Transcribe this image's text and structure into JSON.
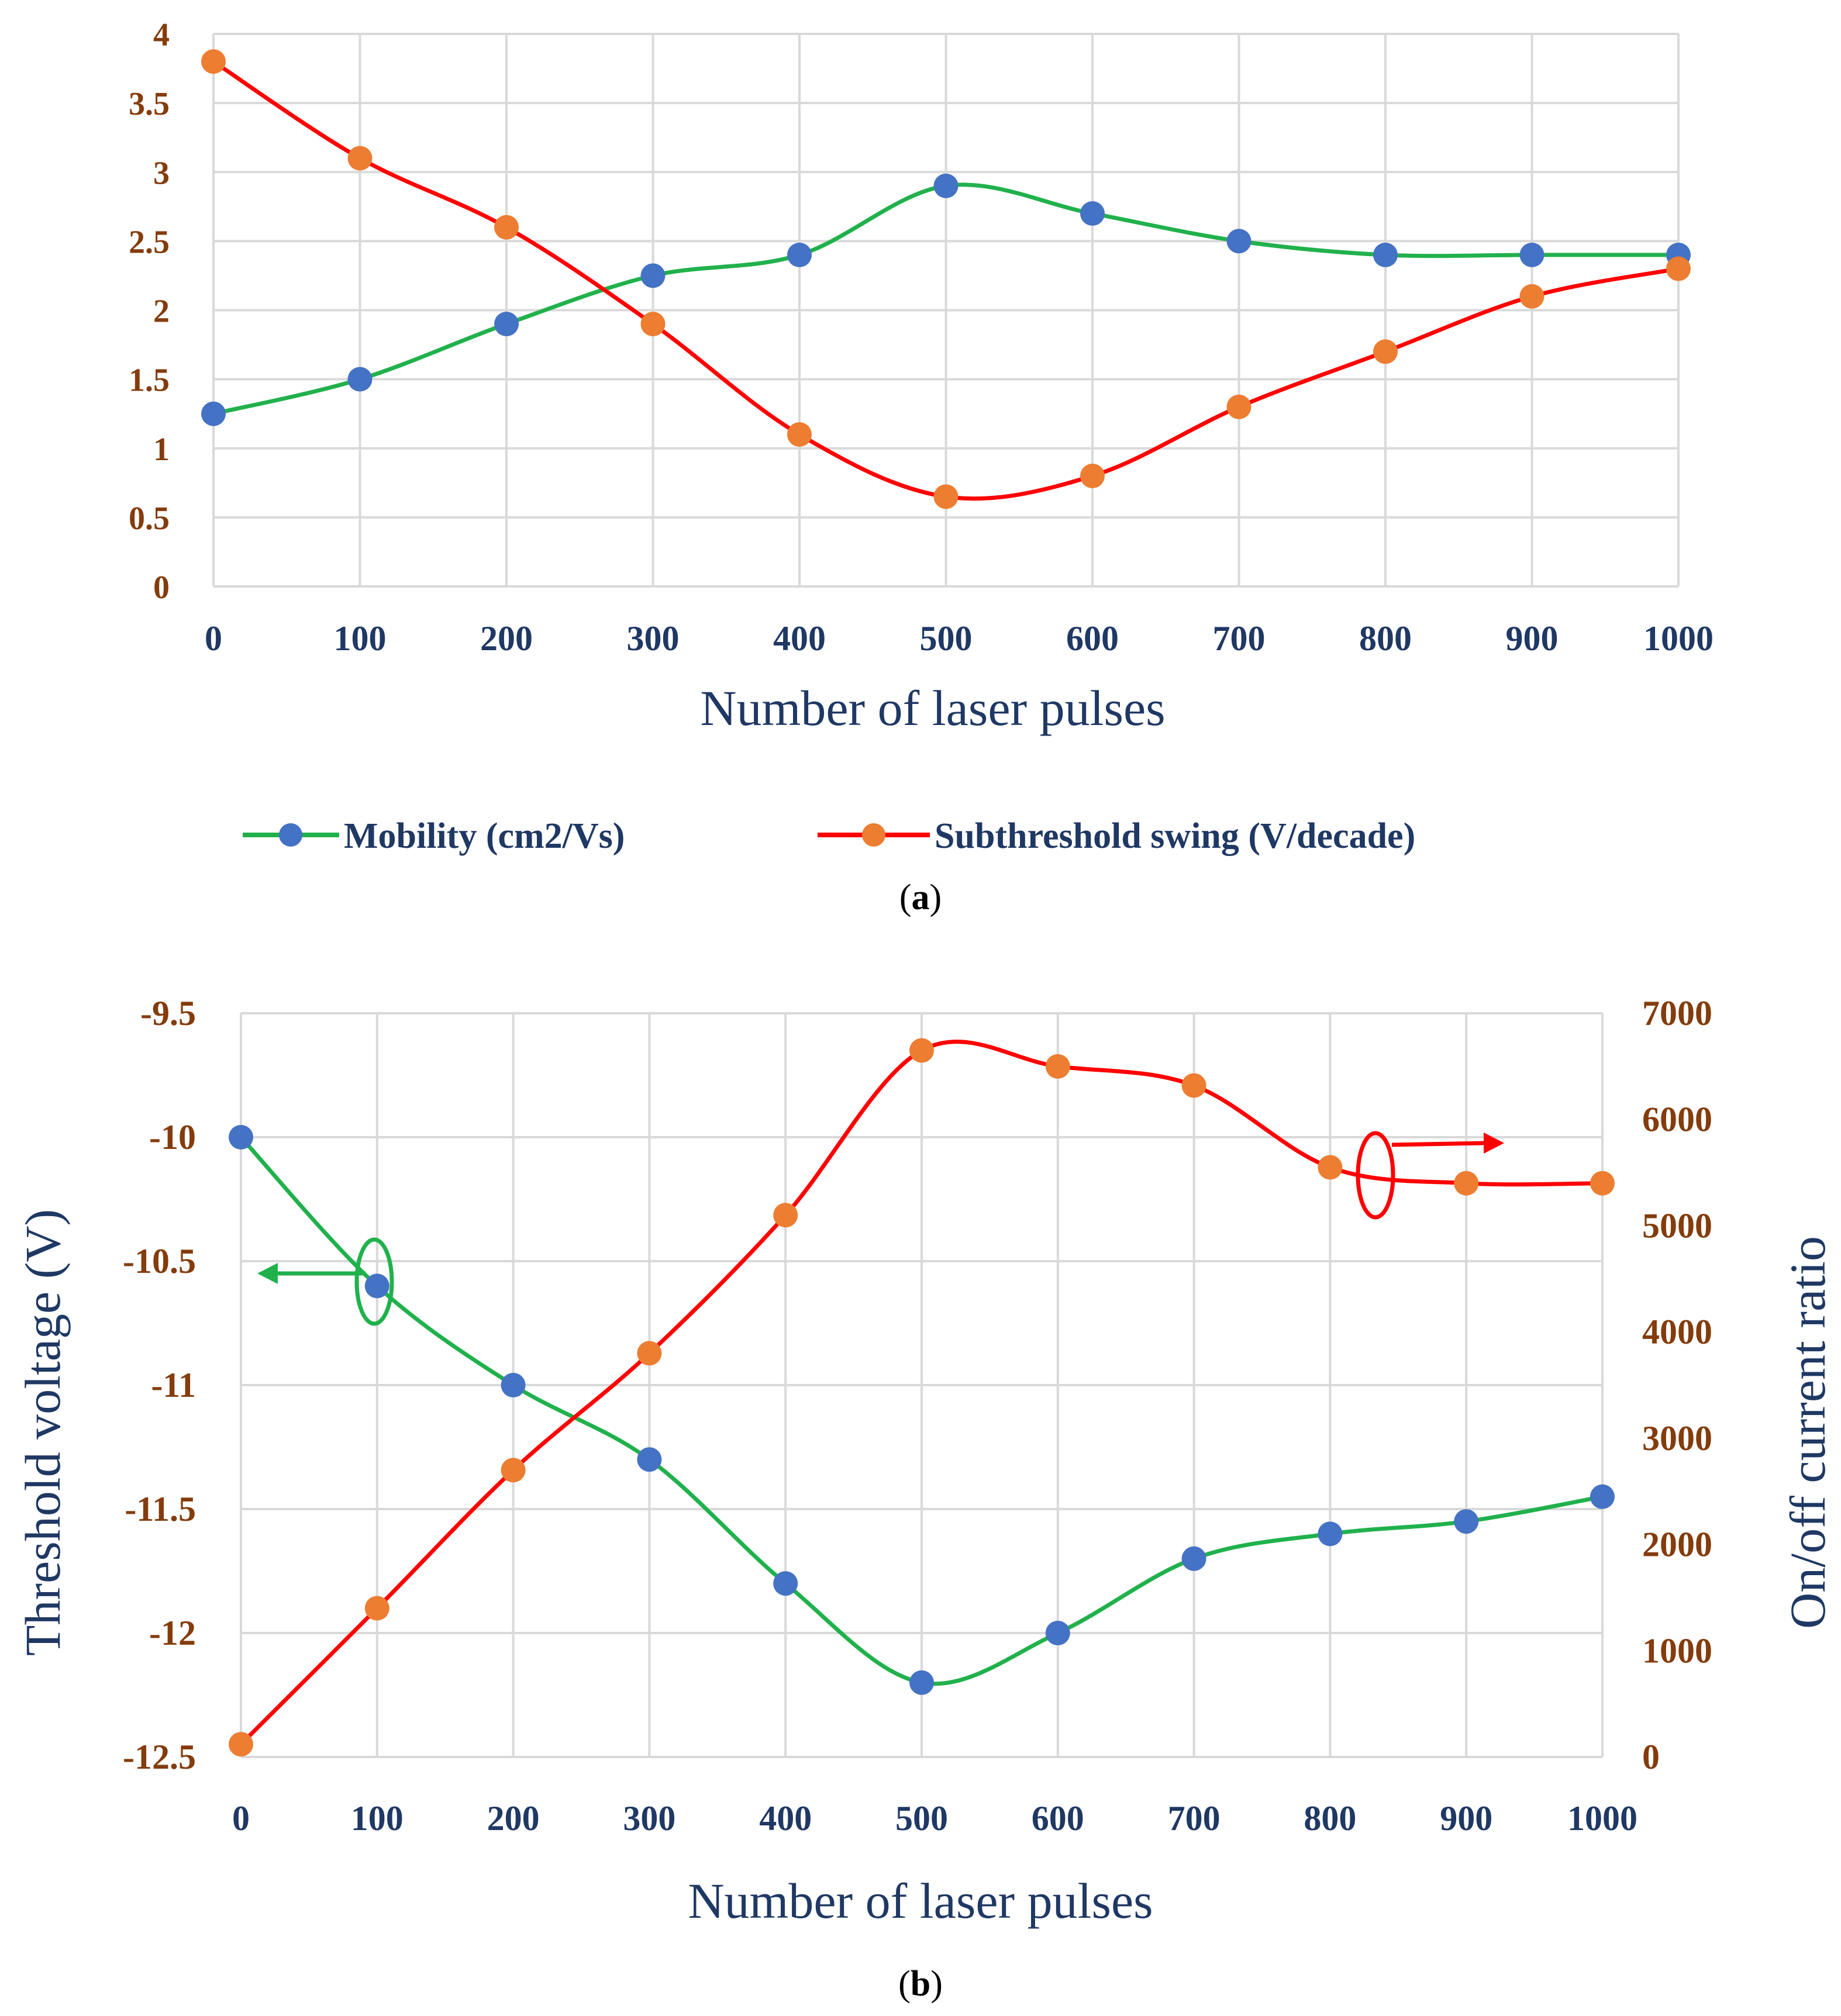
{
  "colors": {
    "mobility_line": "#21b14c",
    "mobility_marker": "#4472c4",
    "ss_line": "#ff0000",
    "ss_marker": "#ed7d31",
    "tick_brown": "#843c0c",
    "tick_navy": "#1f3864",
    "grid": "#d9d9d9"
  },
  "captions": {
    "a": "a",
    "b": "b"
  },
  "chart_data": [
    {
      "id": "a",
      "type": "line",
      "x": [
        0,
        100,
        200,
        300,
        400,
        500,
        600,
        700,
        800,
        900,
        1000
      ],
      "x_tick_labels": [
        "0",
        "100",
        "200",
        "300",
        "400",
        "500",
        "600",
        "700",
        "800",
        "900",
        "1000"
      ],
      "xlabel": "Number of laser pulses",
      "ylabel": "",
      "ylim": [
        0,
        4
      ],
      "y_ticks": [
        0,
        0.5,
        1,
        1.5,
        2,
        2.5,
        3,
        3.5,
        4
      ],
      "y_tick_labels": [
        "0",
        "0.5",
        "1",
        "1.5",
        "2",
        "2.5",
        "3",
        "3.5",
        "4"
      ],
      "grid": true,
      "legend_position": "bottom",
      "series": [
        {
          "name": "Mobility (cm2/Vs)",
          "values": [
            1.25,
            1.5,
            1.9,
            2.25,
            2.4,
            2.9,
            2.7,
            2.5,
            2.4,
            2.4,
            2.4
          ]
        },
        {
          "name": "Subthreshold swing (V/decade)",
          "values": [
            3.8,
            3.1,
            2.6,
            1.9,
            1.1,
            0.65,
            0.8,
            1.3,
            1.7,
            2.1,
            2.3
          ]
        }
      ]
    },
    {
      "id": "b",
      "type": "line",
      "x": [
        0,
        100,
        200,
        300,
        400,
        500,
        600,
        700,
        800,
        900,
        1000
      ],
      "x_tick_labels": [
        "0",
        "100",
        "200",
        "300",
        "400",
        "500",
        "600",
        "700",
        "800",
        "900",
        "1000"
      ],
      "xlabel": "Number of laser pulses",
      "ylabel_left": "Threshold voltage (V)",
      "ylabel_right": "On/off current ratio",
      "ylim_left": [
        -12.5,
        -9.5
      ],
      "y_ticks_left": [
        -12.5,
        -12,
        -11.5,
        -11,
        -10.5,
        -10,
        -9.5
      ],
      "y_tick_labels_left": [
        "-12.5",
        "-12",
        "-11.5",
        "-11",
        "-10.5",
        "-10",
        "-9.5"
      ],
      "ylim_right": [
        0,
        7000
      ],
      "y_ticks_right": [
        0,
        1000,
        2000,
        3000,
        4000,
        5000,
        6000,
        7000
      ],
      "y_tick_labels_right": [
        "0",
        "1000",
        "2000",
        "3000",
        "4000",
        "5000",
        "6000",
        "7000"
      ],
      "grid": true,
      "series": [
        {
          "name": "Threshold voltage",
          "axis": "left",
          "values": [
            -10,
            -10.6,
            -11,
            -11.3,
            -11.8,
            -12.2,
            -12,
            -11.7,
            -11.6,
            -11.55,
            -11.45
          ]
        },
        {
          "name": "On/off current ratio",
          "axis": "right",
          "values": [
            120,
            1400,
            2700,
            3800,
            5100,
            6650,
            6500,
            6320,
            5550,
            5400,
            5400
          ]
        }
      ]
    }
  ]
}
